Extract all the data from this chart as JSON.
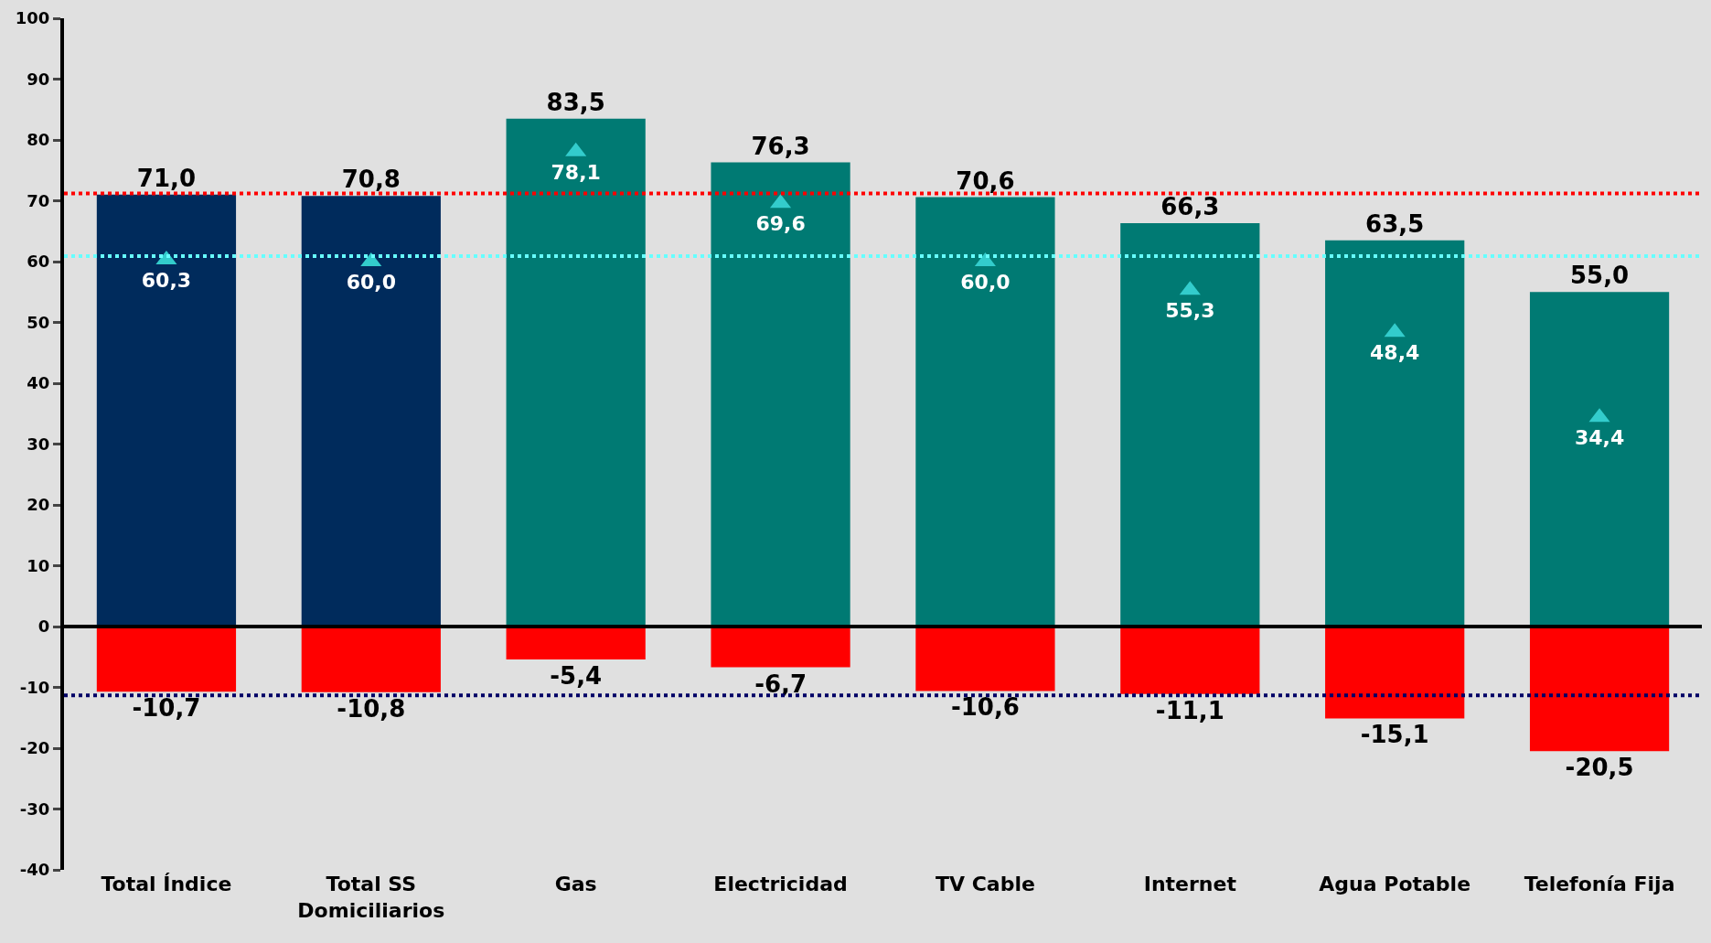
{
  "chart_data": {
    "type": "bar",
    "stacked": true,
    "categories": [
      "Total Índice",
      "Total SS\nDomiciliarios",
      "Gas",
      "Electricidad",
      "TV Cable",
      "Internet",
      "Agua Potable",
      "Telefonía Fija"
    ],
    "series": [
      {
        "colors": [
          "#002b5c",
          "#002b5c",
          "#007a73",
          "#007a73",
          "#007a73",
          "#007a73",
          "#007a73",
          "#007a73"
        ],
        "values": [
          71.0,
          70.8,
          83.5,
          76.3,
          70.6,
          66.3,
          63.5,
          55.0
        ],
        "value_labels": [
          "71,0",
          "70,8",
          "83,5",
          "76,3",
          "70,6",
          "66,3",
          "63,5",
          "55,0"
        ]
      },
      {
        "color": "#ff0000",
        "values": [
          -10.7,
          -10.8,
          -5.4,
          -6.7,
          -10.6,
          -11.1,
          -15.1,
          -20.5
        ],
        "value_labels": [
          "-10,7",
          "-10,8",
          "-5,4",
          "-6,7",
          "-10,6",
          "-11,1",
          "-15,1",
          "-20,5"
        ]
      },
      {
        "type": "scatter",
        "color": "#33cccc",
        "marker": "triangle",
        "values": [
          60.3,
          60.0,
          78.1,
          69.6,
          60.0,
          55.3,
          48.4,
          34.4
        ],
        "value_labels": [
          "60,3",
          "60,0",
          "78,1",
          "69,6",
          "60,0",
          "55,3",
          "48,4",
          "34,4"
        ]
      }
    ],
    "ylim": [
      -40,
      100
    ],
    "yticks": [
      -40,
      -30,
      -20,
      -10,
      0,
      10,
      20,
      30,
      40,
      50,
      60,
      70,
      80,
      90,
      100
    ],
    "ref_lines": [
      {
        "axis": "y",
        "value": 71.2,
        "color": "#ff0000",
        "line_style": "dotted"
      },
      {
        "axis": "y",
        "value": 60.9,
        "color": "#66ffff",
        "line_style": "dotted"
      },
      {
        "axis": "y",
        "value": -11.3,
        "color": "#000066",
        "line_style": "dotted"
      }
    ]
  }
}
